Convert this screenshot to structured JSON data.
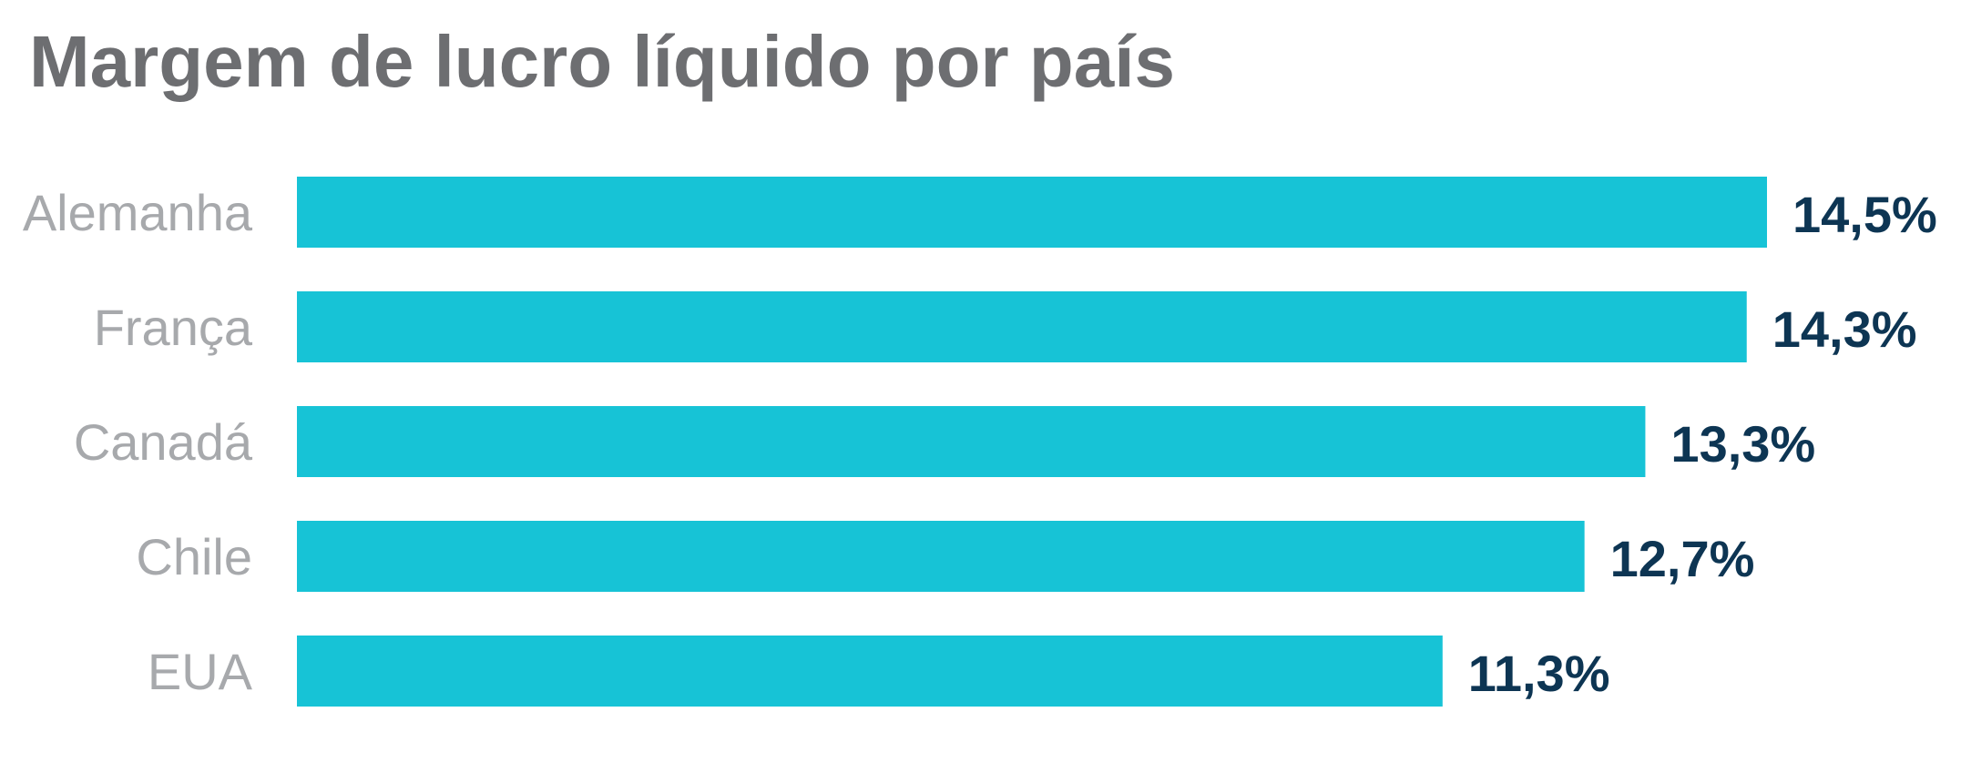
{
  "chart_data": {
    "type": "bar",
    "orientation": "horizontal",
    "title": "Margem de lucro líquido por país",
    "categories": [
      "Alemanha",
      "França",
      "Canadá",
      "Chile",
      "EUA"
    ],
    "values": [
      14.5,
      14.3,
      13.3,
      12.7,
      11.3
    ],
    "value_labels": [
      "14,5%",
      "14,3%",
      "13,3%",
      "12,7%",
      "11,3%"
    ],
    "unit": "%",
    "xlim": [
      0,
      14.5
    ],
    "grid": false,
    "legend": "none",
    "colors": {
      "bar": "#17c3d6",
      "value_label": "#0d3553",
      "category_label": "#a7a9ac",
      "title": "#6d6e71"
    }
  }
}
